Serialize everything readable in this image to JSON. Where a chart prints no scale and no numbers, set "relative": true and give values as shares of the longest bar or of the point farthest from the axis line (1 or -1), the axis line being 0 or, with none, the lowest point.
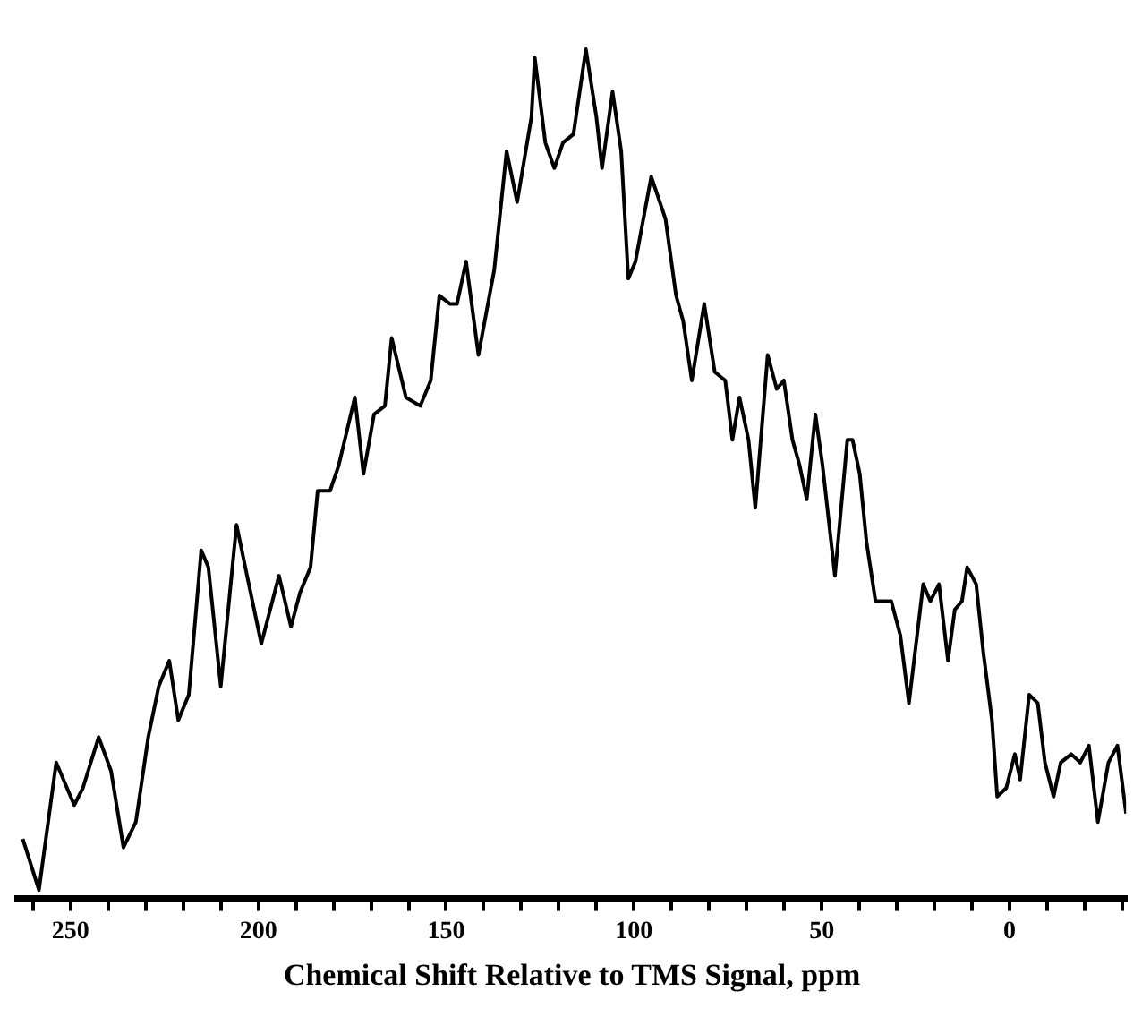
{
  "chart_data": {
    "type": "line",
    "xlabel": "Chemical Shift Relative to TMS Signal, ppm",
    "relative": true,
    "marker": "none",
    "xlim": [
      264,
      -31
    ],
    "xticks": [
      {
        "value": 260,
        "label": null
      },
      250,
      {
        "value": 240,
        "label": null
      },
      {
        "value": 230,
        "label": null
      },
      {
        "value": 220,
        "label": null
      },
      {
        "value": 210,
        "label": null
      },
      200,
      {
        "value": 190,
        "label": null
      },
      {
        "value": 180,
        "label": null
      },
      {
        "value": 170,
        "label": null
      },
      {
        "value": 160,
        "label": null
      },
      150,
      {
        "value": 140,
        "label": null
      },
      {
        "value": 130,
        "label": null
      },
      {
        "value": 120,
        "label": null
      },
      {
        "value": 110,
        "label": null
      },
      100,
      {
        "value": 90,
        "label": null
      },
      {
        "value": 80,
        "label": null
      },
      {
        "value": 70,
        "label": null
      },
      {
        "value": 60,
        "label": null
      },
      50,
      {
        "value": 40,
        "label": null
      },
      {
        "value": 30,
        "label": null
      },
      {
        "value": 20,
        "label": null
      },
      {
        "value": 10,
        "label": null
      },
      0,
      {
        "value": -10,
        "label": null
      },
      {
        "value": -20,
        "label": null
      },
      {
        "value": -30,
        "label": null
      }
    ],
    "series": [
      {
        "color": "#000000",
        "x": [
          262.7,
          258.4,
          253.8,
          249.0,
          246.7,
          242.5,
          239.2,
          235.9,
          232.6,
          229.3,
          226.5,
          223.7,
          221.3,
          218.5,
          215.2,
          213.3,
          210.0,
          205.8,
          203.0,
          199.2,
          194.5,
          191.3,
          188.9,
          186.1,
          184.2,
          180.9,
          178.6,
          174.3,
          172.0,
          169.2,
          166.3,
          164.5,
          160.7,
          156.9,
          154.1,
          151.8,
          149.0,
          147.1,
          144.7,
          141.4,
          137.2,
          133.9,
          131.1,
          127.3,
          126.4,
          123.6,
          121.2,
          118.9,
          116.1,
          112.8,
          110.0,
          108.5,
          105.7,
          103.4,
          101.5,
          99.6,
          95.4,
          91.6,
          88.8,
          86.9,
          84.6,
          81.3,
          78.5,
          75.7,
          73.8,
          71.9,
          69.5,
          67.7,
          64.4,
          62.0,
          60.1,
          57.8,
          55.9,
          54.0,
          51.7,
          49.8,
          46.5,
          43.2,
          41.8,
          39.9,
          38.1,
          35.7,
          31.5,
          29.1,
          26.8,
          23.0,
          21.1,
          18.8,
          16.4,
          14.6,
          12.7,
          11.3,
          8.9,
          7.0,
          4.7,
          3.3,
          0.9,
          -1.4,
          -2.8,
          -5.2,
          -7.5,
          -9.4,
          -11.7,
          -13.6,
          -16.4,
          -18.8,
          -21.1,
          -23.5,
          -26.3,
          -28.7,
          -31.0
        ],
        "values": [
          0.07,
          0.01,
          0.16,
          0.11,
          0.13,
          0.19,
          0.15,
          0.06,
          0.09,
          0.19,
          0.25,
          0.28,
          0.21,
          0.24,
          0.41,
          0.39,
          0.25,
          0.44,
          0.38,
          0.3,
          0.38,
          0.32,
          0.36,
          0.39,
          0.48,
          0.48,
          0.51,
          0.59,
          0.5,
          0.57,
          0.58,
          0.66,
          0.59,
          0.58,
          0.61,
          0.71,
          0.7,
          0.7,
          0.75,
          0.64,
          0.74,
          0.88,
          0.82,
          0.92,
          0.99,
          0.89,
          0.86,
          0.89,
          0.9,
          1.0,
          0.92,
          0.86,
          0.95,
          0.88,
          0.73,
          0.75,
          0.85,
          0.8,
          0.71,
          0.68,
          0.61,
          0.7,
          0.62,
          0.61,
          0.54,
          0.59,
          0.54,
          0.46,
          0.64,
          0.6,
          0.61,
          0.54,
          0.51,
          0.47,
          0.57,
          0.51,
          0.38,
          0.54,
          0.54,
          0.5,
          0.42,
          0.35,
          0.35,
          0.31,
          0.23,
          0.37,
          0.35,
          0.37,
          0.28,
          0.34,
          0.35,
          0.39,
          0.37,
          0.29,
          0.21,
          0.12,
          0.13,
          0.17,
          0.14,
          0.24,
          0.23,
          0.16,
          0.12,
          0.16,
          0.17,
          0.16,
          0.18,
          0.09,
          0.16,
          0.18,
          0.1
        ]
      }
    ]
  }
}
